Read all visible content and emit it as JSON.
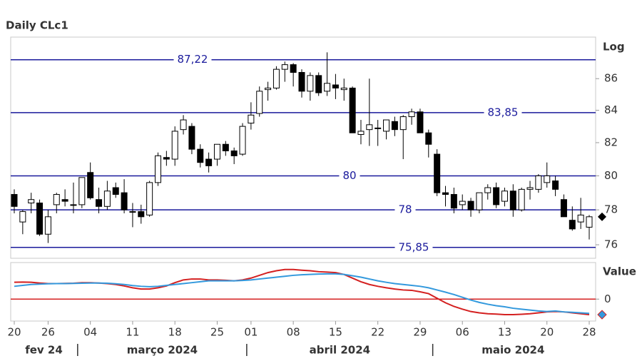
{
  "chart_data": [
    {
      "type": "candlestick",
      "title": "Daily CLc1",
      "y_label": "Log",
      "log_scale": true,
      "x": [
        "2024-02-20",
        "2024-02-21",
        "2024-02-22",
        "2024-02-23",
        "2024-02-26",
        "2024-02-27",
        "2024-02-28",
        "2024-02-29",
        "2024-03-01",
        "2024-03-04",
        "2024-03-05",
        "2024-03-06",
        "2024-03-07",
        "2024-03-08",
        "2024-03-11",
        "2024-03-12",
        "2024-03-13",
        "2024-03-14",
        "2024-03-15",
        "2024-03-18",
        "2024-03-19",
        "2024-03-20",
        "2024-03-21",
        "2024-03-22",
        "2024-03-25",
        "2024-03-26",
        "2024-03-27",
        "2024-03-28",
        "2024-04-01",
        "2024-04-02",
        "2024-04-03",
        "2024-04-04",
        "2024-04-05",
        "2024-04-08",
        "2024-04-09",
        "2024-04-10",
        "2024-04-11",
        "2024-04-12",
        "2024-04-15",
        "2024-04-16",
        "2024-04-17",
        "2024-04-18",
        "2024-04-19",
        "2024-04-22",
        "2024-04-23",
        "2024-04-24",
        "2024-04-25",
        "2024-04-26",
        "2024-04-29",
        "2024-04-30",
        "2024-05-01",
        "2024-05-02",
        "2024-05-03",
        "2024-05-06",
        "2024-05-07",
        "2024-05-08",
        "2024-05-09",
        "2024-05-10",
        "2024-05-13",
        "2024-05-14",
        "2024-05-15",
        "2024-05-16",
        "2024-05-17",
        "2024-05-20",
        "2024-05-21",
        "2024-05-22",
        "2024-05-23",
        "2024-05-24",
        "2024-05-28"
      ],
      "ohlc": [
        [
          78.9,
          79.2,
          77.8,
          78.2
        ],
        [
          77.3,
          78.0,
          76.6,
          77.9
        ],
        [
          78.4,
          79.0,
          77.8,
          78.6
        ],
        [
          78.4,
          78.6,
          76.5,
          76.6
        ],
        [
          76.6,
          78.0,
          76.1,
          77.6
        ],
        [
          78.3,
          79.0,
          77.8,
          78.9
        ],
        [
          78.6,
          79.2,
          78.2,
          78.5
        ],
        [
          78.3,
          79.6,
          77.8,
          78.3
        ],
        [
          78.3,
          79.9,
          78.1,
          79.9
        ],
        [
          80.2,
          80.8,
          78.6,
          78.7
        ],
        [
          78.6,
          79.3,
          77.8,
          78.2
        ],
        [
          78.2,
          79.7,
          78.0,
          79.1
        ],
        [
          79.3,
          79.6,
          78.7,
          78.9
        ],
        [
          79.0,
          79.8,
          77.8,
          78.0
        ],
        [
          77.9,
          78.4,
          77.0,
          77.9
        ],
        [
          77.9,
          78.3,
          77.2,
          77.6
        ],
        [
          77.7,
          79.7,
          77.6,
          79.6
        ],
        [
          79.6,
          81.4,
          79.4,
          81.2
        ],
        [
          81.1,
          81.5,
          80.6,
          81.0
        ],
        [
          81.0,
          83.0,
          80.6,
          82.7
        ],
        [
          82.8,
          83.7,
          82.5,
          83.4
        ],
        [
          83.0,
          83.2,
          81.3,
          81.6
        ],
        [
          81.6,
          81.9,
          80.5,
          80.8
        ],
        [
          81.0,
          81.4,
          80.2,
          80.6
        ],
        [
          81.0,
          81.9,
          80.6,
          81.9
        ],
        [
          81.9,
          82.1,
          81.2,
          81.5
        ],
        [
          81.5,
          81.7,
          80.7,
          81.2
        ],
        [
          81.3,
          83.2,
          81.2,
          83.0
        ],
        [
          83.2,
          84.5,
          82.8,
          83.7
        ],
        [
          83.8,
          85.5,
          83.6,
          85.2
        ],
        [
          85.3,
          85.8,
          84.6,
          85.4
        ],
        [
          85.4,
          86.8,
          85.3,
          86.6
        ],
        [
          86.6,
          87.1,
          85.8,
          86.9
        ],
        [
          86.9,
          87.0,
          85.5,
          86.4
        ],
        [
          86.4,
          86.6,
          84.8,
          85.2
        ],
        [
          85.2,
          86.4,
          84.6,
          86.2
        ],
        [
          86.2,
          86.4,
          84.9,
          85.1
        ],
        [
          85.2,
          87.7,
          84.9,
          85.7
        ],
        [
          85.6,
          86.3,
          84.7,
          85.4
        ],
        [
          85.3,
          86.0,
          84.6,
          85.4
        ],
        [
          85.4,
          85.5,
          82.6,
          82.6
        ],
        [
          82.5,
          83.4,
          81.9,
          82.7
        ],
        [
          82.8,
          86.0,
          81.8,
          83.1
        ],
        [
          82.9,
          83.4,
          81.8,
          82.9
        ],
        [
          82.7,
          83.4,
          82.2,
          83.4
        ],
        [
          83.3,
          83.6,
          82.4,
          82.8
        ],
        [
          82.8,
          83.7,
          81.0,
          83.6
        ],
        [
          83.6,
          84.1,
          83.1,
          83.9
        ],
        [
          83.9,
          84.1,
          82.6,
          82.6
        ],
        [
          82.6,
          82.8,
          81.1,
          81.9
        ],
        [
          81.3,
          81.6,
          78.8,
          79.0
        ],
        [
          79.0,
          79.4,
          78.2,
          78.9
        ],
        [
          78.9,
          79.3,
          77.8,
          78.1
        ],
        [
          78.3,
          78.9,
          78.0,
          78.5
        ],
        [
          78.5,
          78.7,
          77.6,
          78.0
        ],
        [
          78.0,
          79.0,
          77.8,
          79.0
        ],
        [
          79.0,
          79.5,
          78.6,
          79.3
        ],
        [
          79.3,
          79.6,
          78.1,
          78.3
        ],
        [
          78.5,
          79.3,
          78.2,
          79.1
        ],
        [
          79.1,
          79.5,
          77.6,
          78.0
        ],
        [
          78.0,
          79.3,
          77.9,
          79.2
        ],
        [
          79.2,
          79.7,
          78.6,
          79.3
        ],
        [
          79.2,
          80.1,
          79.0,
          80.0
        ],
        [
          79.6,
          80.8,
          79.3,
          80.0
        ],
        [
          79.7,
          80.0,
          78.8,
          79.2
        ],
        [
          78.6,
          78.9,
          77.6,
          77.6
        ],
        [
          77.4,
          78.2,
          76.8,
          76.9
        ],
        [
          77.3,
          78.7,
          76.9,
          77.7
        ],
        [
          77.0,
          77.7,
          76.3,
          77.6
        ]
      ],
      "ylim": [
        75.24,
        88.7
      ],
      "yticks": [
        76,
        78,
        80,
        82,
        84,
        86
      ],
      "xticks": [
        {
          "value": "2024-02-20",
          "label": "20"
        },
        {
          "value": "2024-02-26",
          "label": "26"
        },
        {
          "value": "2024-03-04",
          "label": "04"
        },
        {
          "value": "2024-03-11",
          "label": "11"
        },
        {
          "value": "2024-03-18",
          "label": "18"
        },
        {
          "value": "2024-03-25",
          "label": "25"
        },
        {
          "value": "2024-04-01",
          "label": "01"
        },
        {
          "value": "2024-04-08",
          "label": "08"
        },
        {
          "value": "2024-04-15",
          "label": "15"
        },
        {
          "value": "2024-04-22",
          "label": "22"
        },
        {
          "value": "2024-04-29",
          "label": "29"
        },
        {
          "value": "2024-05-06",
          "label": "06"
        },
        {
          "value": "2024-05-13",
          "label": "13"
        },
        {
          "value": "2024-05-20",
          "label": "20"
        },
        {
          "value": "2024-05-28",
          "label": "28"
        }
      ],
      "month_labels": [
        {
          "value": "2024-02",
          "label": "fev 24"
        },
        {
          "value": "2024-03",
          "label": "março 2024"
        },
        {
          "value": "2024-04",
          "label": "abril 2024"
        },
        {
          "value": "2024-05",
          "label": "maio 2024"
        }
      ],
      "levels": [
        {
          "value": 87.22,
          "label": "87,22"
        },
        {
          "value": 83.85,
          "label": "83,85"
        },
        {
          "value": 80,
          "label": "80"
        },
        {
          "value": 78,
          "label": "78"
        },
        {
          "value": 75.85,
          "label": "75,85"
        }
      ],
      "up_color": "#ffffff",
      "down_color": "#000000",
      "level_color": "#1a1a9c"
    },
    {
      "type": "line",
      "y_label": "Value",
      "x": [
        "2024-02-20",
        "2024-02-21",
        "2024-02-22",
        "2024-02-23",
        "2024-02-26",
        "2024-02-27",
        "2024-02-28",
        "2024-02-29",
        "2024-03-01",
        "2024-03-04",
        "2024-03-05",
        "2024-03-06",
        "2024-03-07",
        "2024-03-08",
        "2024-03-11",
        "2024-03-12",
        "2024-03-13",
        "2024-03-14",
        "2024-03-15",
        "2024-03-18",
        "2024-03-19",
        "2024-03-20",
        "2024-03-21",
        "2024-03-22",
        "2024-03-25",
        "2024-03-26",
        "2024-03-27",
        "2024-03-28",
        "2024-04-01",
        "2024-04-02",
        "2024-04-03",
        "2024-04-04",
        "2024-04-05",
        "2024-04-08",
        "2024-04-09",
        "2024-04-10",
        "2024-04-11",
        "2024-04-12",
        "2024-04-15",
        "2024-04-16",
        "2024-04-17",
        "2024-04-18",
        "2024-04-19",
        "2024-04-22",
        "2024-04-23",
        "2024-04-24",
        "2024-04-25",
        "2024-04-26",
        "2024-04-29",
        "2024-04-30",
        "2024-05-01",
        "2024-05-02",
        "2024-05-03",
        "2024-05-06",
        "2024-05-07",
        "2024-05-08",
        "2024-05-09",
        "2024-05-10",
        "2024-05-13",
        "2024-05-14",
        "2024-05-15",
        "2024-05-16",
        "2024-05-17",
        "2024-05-20",
        "2024-05-21",
        "2024-05-22",
        "2024-05-23",
        "2024-05-24",
        "2024-05-28"
      ],
      "series": [
        {
          "color": "#d42020",
          "values": [
            0.92,
            0.93,
            0.92,
            0.88,
            0.85,
            0.85,
            0.86,
            0.87,
            0.9,
            0.9,
            0.88,
            0.85,
            0.8,
            0.72,
            0.62,
            0.55,
            0.55,
            0.62,
            0.72,
            0.9,
            1.05,
            1.1,
            1.1,
            1.05,
            1.05,
            1.03,
            1.0,
            1.05,
            1.15,
            1.3,
            1.45,
            1.55,
            1.62,
            1.62,
            1.58,
            1.55,
            1.5,
            1.48,
            1.45,
            1.35,
            1.15,
            0.95,
            0.8,
            0.7,
            0.62,
            0.55,
            0.5,
            0.48,
            0.4,
            0.3,
            0.05,
            -0.2,
            -0.4,
            -0.55,
            -0.68,
            -0.75,
            -0.8,
            -0.82,
            -0.85,
            -0.85,
            -0.83,
            -0.8,
            -0.75,
            -0.7,
            -0.68,
            -0.7,
            -0.75,
            -0.8,
            -0.85
          ]
        },
        {
          "color": "#3399dd",
          "values": [
            0.7,
            0.75,
            0.8,
            0.82,
            0.84,
            0.85,
            0.85,
            0.86,
            0.87,
            0.88,
            0.88,
            0.87,
            0.84,
            0.8,
            0.74,
            0.7,
            0.68,
            0.7,
            0.75,
            0.8,
            0.85,
            0.9,
            0.95,
            1.0,
            1.0,
            1.0,
            1.0,
            1.02,
            1.05,
            1.1,
            1.15,
            1.2,
            1.25,
            1.3,
            1.33,
            1.35,
            1.37,
            1.38,
            1.38,
            1.35,
            1.28,
            1.2,
            1.1,
            1.0,
            0.92,
            0.85,
            0.8,
            0.75,
            0.7,
            0.62,
            0.5,
            0.38,
            0.25,
            0.1,
            -0.05,
            -0.18,
            -0.28,
            -0.36,
            -0.42,
            -0.5,
            -0.55,
            -0.6,
            -0.65,
            -0.68,
            -0.65,
            -0.7,
            -0.72,
            -0.75,
            -0.78
          ]
        }
      ],
      "ylim": [
        -1.2,
        2.0
      ],
      "yticks": [
        0
      ],
      "zero_line_color": "#d42020"
    }
  ]
}
